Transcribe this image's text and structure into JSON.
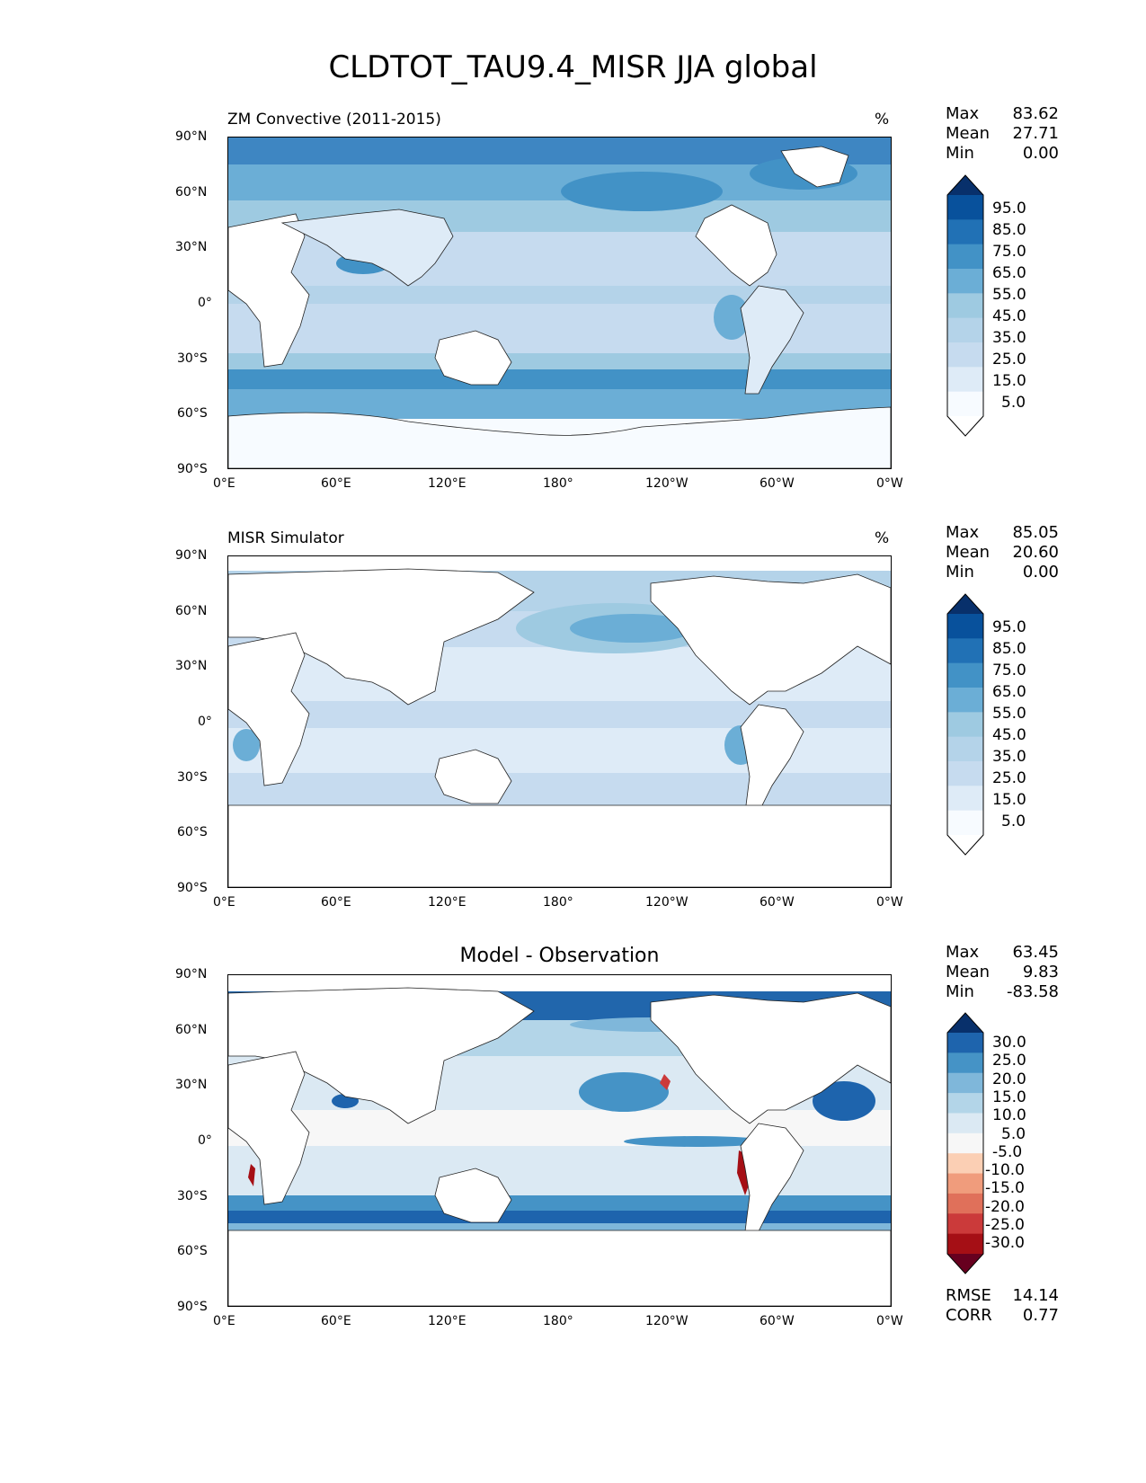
{
  "title": "CLDTOT_TAU9.4_MISR JJA global",
  "x_ticks": [
    "0°E",
    "60°E",
    "120°E",
    "180°",
    "120°W",
    "60°W",
    "0°W"
  ],
  "y_ticks": [
    "90°N",
    "60°N",
    "30°N",
    "0°",
    "30°S",
    "60°S",
    "90°S"
  ],
  "panels": [
    {
      "title": "ZM Convective (2011-2015)",
      "units": "%",
      "stats": [
        {
          "label": "Max",
          "value": "83.62"
        },
        {
          "label": "Mean",
          "value": "27.71"
        },
        {
          "label": "Min",
          "value": "0.00"
        }
      ],
      "colorbar_labels": [
        "95.0",
        "85.0",
        "75.0",
        "65.0",
        "55.0",
        "45.0",
        "35.0",
        "25.0",
        "15.0",
        "5.0"
      ]
    },
    {
      "title": "MISR Simulator",
      "units": "%",
      "stats": [
        {
          "label": "Max",
          "value": "85.05"
        },
        {
          "label": "Mean",
          "value": "20.60"
        },
        {
          "label": "Min",
          "value": "0.00"
        }
      ],
      "colorbar_labels": [
        "95.0",
        "85.0",
        "75.0",
        "65.0",
        "55.0",
        "45.0",
        "35.0",
        "25.0",
        "15.0",
        "5.0"
      ]
    },
    {
      "title": "Model - Observation",
      "units": "",
      "stats": [
        {
          "label": "Max",
          "value": "63.45"
        },
        {
          "label": "Mean",
          "value": "9.83"
        },
        {
          "label": "Min",
          "value": "-83.58"
        }
      ],
      "colorbar_labels": [
        "30.0",
        "25.0",
        "20.0",
        "15.0",
        "10.0",
        "5.0",
        "-5.0",
        "-10.0",
        "-15.0",
        "-20.0",
        "-25.0",
        "-30.0"
      ],
      "metrics": [
        {
          "label": "RMSE",
          "value": "14.14"
        },
        {
          "label": "CORR",
          "value": "0.77"
        }
      ]
    }
  ],
  "colors": {
    "blues": [
      "#f7fbff",
      "#deebf7",
      "#c6dbef",
      "#b4d3e9",
      "#9ecae1",
      "#6baed6",
      "#4292c6",
      "#2171b5",
      "#08519c",
      "#08306b"
    ],
    "rdbu": [
      "#67001f",
      "#a50f15",
      "#cb3a3a",
      "#e0705a",
      "#f09c7c",
      "#fbcfb4",
      "#f7f7f7",
      "#dbe9f3",
      "#b3d5e8",
      "#7fb7da",
      "#4593c6",
      "#1e64ad",
      "#08306b"
    ]
  }
}
